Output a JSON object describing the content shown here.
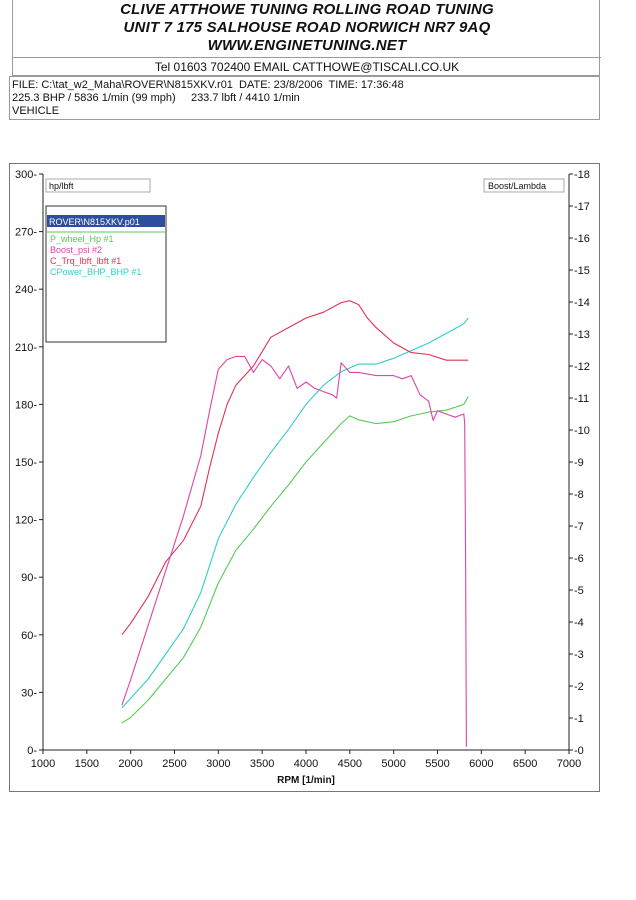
{
  "header": {
    "line1": "CLIVE ATTHOWE TUNING ROLLING ROAD TUNING",
    "line2": "UNIT 7 175 SALHOUSE ROAD NORWICH NR7 9AQ",
    "line3": "WWW.ENGINETUNING.NET",
    "contact": "Tel 01603 702400 EMAIL CATTHOWE@TISCALI.CO.UK"
  },
  "info": {
    "file_line": "FILE: C:\\tat_w2_Maha\\ROVER\\N815XKV.r01  DATE: 23/8/2006  TIME: 17:36:48",
    "peak_line": "225.3 BHP / 5836 1/min (99 mph)     233.7 lbft / 4410 1/min",
    "vehicle_line": "VEHICLE"
  },
  "chart_data": {
    "type": "line",
    "title": "",
    "xlabel": "RPM  [1/min]",
    "ylabel_left": "hp/lbft",
    "ylabel_right": "Boost/Lambda",
    "xlim": [
      1000,
      7000
    ],
    "ylim_left": [
      0,
      300
    ],
    "ylim_right": [
      0,
      -18
    ],
    "x_ticks": [
      1000,
      1500,
      2000,
      2500,
      3000,
      3500,
      4000,
      4500,
      5000,
      5500,
      6000,
      6500,
      7000
    ],
    "y_left_ticks": [
      0,
      30,
      60,
      90,
      120,
      150,
      180,
      210,
      240,
      270,
      300
    ],
    "y_right_ticks": [
      0,
      -1,
      -2,
      -3,
      -4,
      -5,
      -6,
      -7,
      -8,
      -9,
      -10,
      -11,
      -12,
      -13,
      -14,
      -15,
      -16,
      -17,
      -18
    ],
    "grid": false,
    "legend": {
      "placement": "top-left",
      "file": "ROVER\\N815XKV.p01",
      "file_bg": "#2b4f9e",
      "entries": [
        {
          "label": "P_wheel_Hp #1",
          "color": "#55cc55"
        },
        {
          "label": "Boost_psi #2",
          "color": "#dd44aa"
        },
        {
          "label": "C_Trq_lbft_lbft #1",
          "color": "#dd3355"
        },
        {
          "label": "CPower_BHP_BHP #1",
          "color": "#33cccc"
        }
      ]
    },
    "series": [
      {
        "name": "P_wheel_Hp #1",
        "color": "#55cc55",
        "axis": "left",
        "x": [
          1900,
          2000,
          2200,
          2400,
          2600,
          2800,
          3000,
          3200,
          3400,
          3600,
          3800,
          4000,
          4200,
          4400,
          4500,
          4600,
          4800,
          5000,
          5200,
          5400,
          5600,
          5800,
          5850
        ],
        "y": [
          14,
          17,
          26,
          37,
          48,
          64,
          87,
          104,
          115,
          127,
          138,
          150,
          160,
          170,
          174,
          172,
          170,
          171,
          174,
          176,
          177,
          180,
          184
        ]
      },
      {
        "name": "CPower_BHP_BHP #1",
        "color": "#33cccc",
        "axis": "left",
        "x": [
          1900,
          2000,
          2200,
          2400,
          2600,
          2800,
          3000,
          3200,
          3400,
          3600,
          3800,
          4000,
          4200,
          4400,
          4500,
          4600,
          4800,
          5000,
          5200,
          5400,
          5600,
          5800,
          5850
        ],
        "y": [
          22,
          27,
          37,
          50,
          63,
          82,
          110,
          128,
          142,
          155,
          167,
          180,
          190,
          197,
          199,
          201,
          201,
          204,
          208,
          212,
          217,
          222,
          225
        ]
      },
      {
        "name": "C_Trq_lbft_lbft #1",
        "color": "#dd3355",
        "axis": "left",
        "x": [
          1900,
          2000,
          2200,
          2400,
          2600,
          2800,
          2900,
          3000,
          3100,
          3200,
          3400,
          3600,
          3800,
          4000,
          4200,
          4400,
          4500,
          4600,
          4700,
          4800,
          5000,
          5200,
          5400,
          5600,
          5800,
          5850
        ],
        "y": [
          60,
          66,
          80,
          98,
          109,
          127,
          147,
          165,
          180,
          190,
          200,
          215,
          220,
          225,
          228,
          233,
          234,
          232,
          225,
          220,
          212,
          207,
          206,
          203,
          203,
          203
        ]
      },
      {
        "name": "Boost_psi #2",
        "color": "#dd44aa",
        "axis": "right",
        "x": [
          1900,
          2000,
          2200,
          2400,
          2600,
          2800,
          2900,
          3000,
          3100,
          3200,
          3300,
          3400,
          3500,
          3600,
          3700,
          3800,
          3900,
          4000,
          4100,
          4200,
          4300,
          4350,
          4400,
          4500,
          4600,
          4800,
          5000,
          5100,
          5200,
          5300,
          5400,
          5450,
          5500,
          5600,
          5700,
          5800,
          5810,
          5820,
          5830
        ],
        "y": [
          -1.4,
          -2.2,
          -3.9,
          -5.6,
          -7.3,
          -9.2,
          -10.6,
          -11.9,
          -12.2,
          -12.3,
          -12.3,
          -11.8,
          -12.2,
          -12.0,
          -11.6,
          -12.0,
          -11.3,
          -11.5,
          -11.3,
          -11.2,
          -11.1,
          -11.0,
          -12.1,
          -11.8,
          -11.8,
          -11.7,
          -11.7,
          -11.6,
          -11.7,
          -11.1,
          -10.9,
          -10.3,
          -10.6,
          -10.5,
          -10.4,
          -10.5,
          -10.2,
          -6.0,
          -0.1
        ]
      }
    ]
  }
}
